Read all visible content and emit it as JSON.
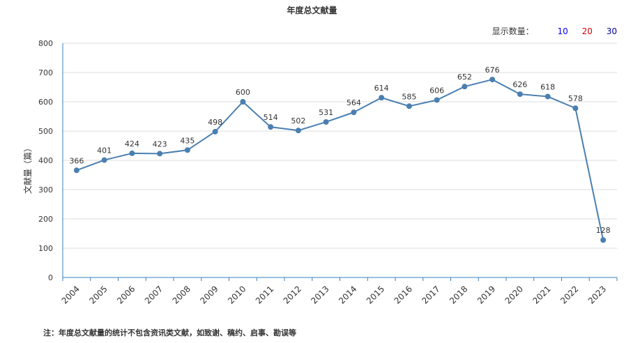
{
  "chart_data": {
    "type": "line",
    "title": "年度总文献量",
    "ylabel": "文献量（篇）",
    "xlabel": "",
    "categories": [
      "2004",
      "2005",
      "2006",
      "2007",
      "2008",
      "2009",
      "2010",
      "2011",
      "2012",
      "2013",
      "2014",
      "2015",
      "2016",
      "2017",
      "2018",
      "2019",
      "2020",
      "2021",
      "2022",
      "2023"
    ],
    "series": [
      {
        "values": [
          366,
          401,
          424,
          423,
          435,
          498,
          600,
          514,
          502,
          531,
          564,
          614,
          585,
          606,
          652,
          676,
          626,
          618,
          578,
          128
        ]
      }
    ],
    "ylim": [
      0,
      800
    ],
    "yticks": [
      "0",
      "100",
      "200",
      "300",
      "400",
      "500",
      "600",
      "700",
      "800"
    ],
    "grid": "horizontal",
    "line_color": "#4a7fb0"
  },
  "controls": {
    "display_label": "显示数量：",
    "options": [
      "10",
      "20",
      "30"
    ]
  },
  "footnote": "注：年度总文献量的统计不包含资讯类文献，如致谢、稿约、启事、勘误等"
}
